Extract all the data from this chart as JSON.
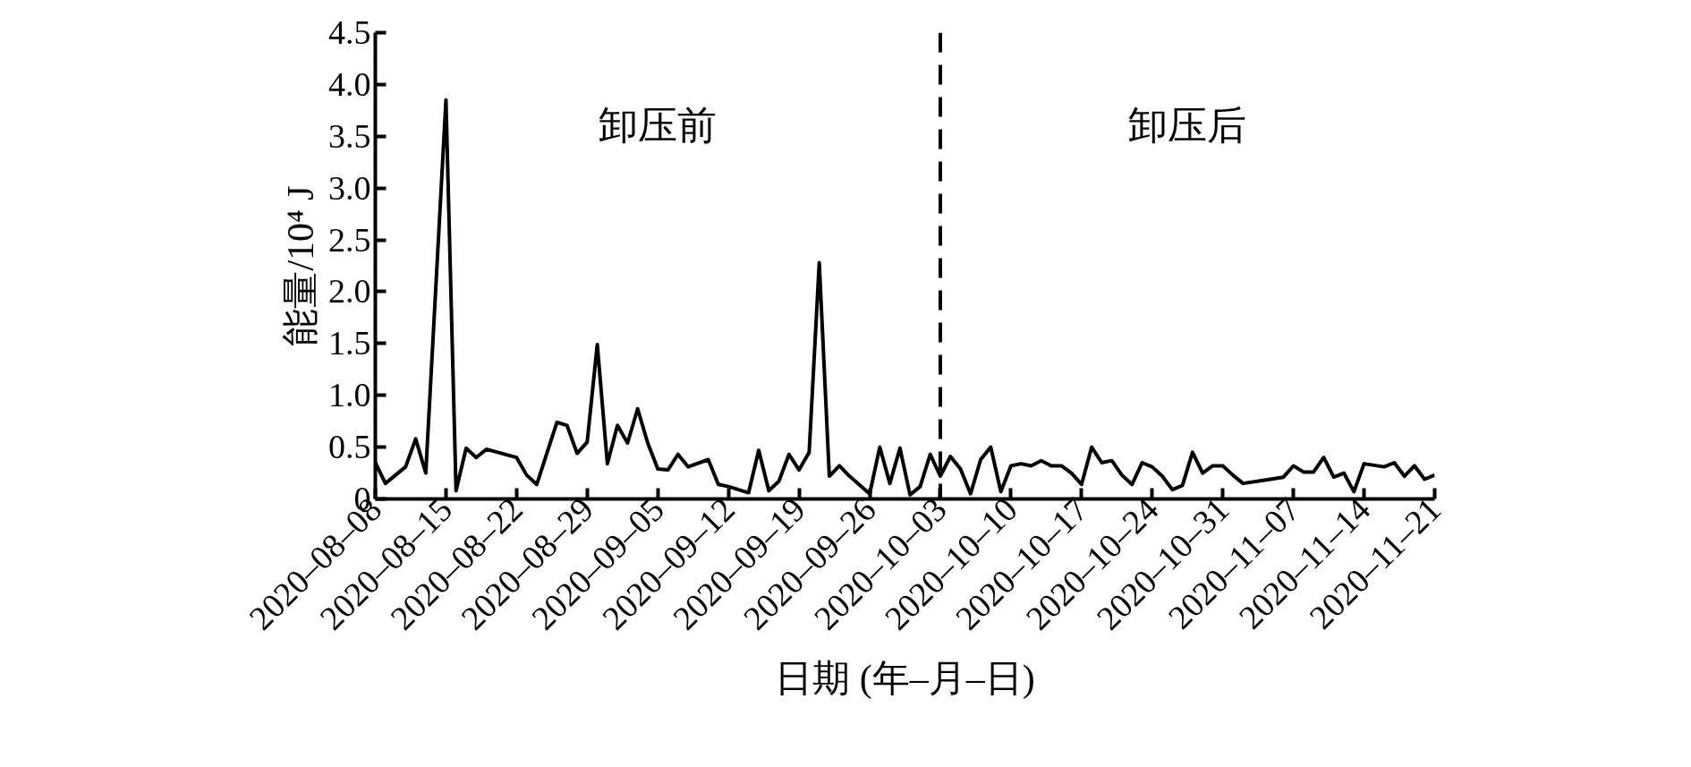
{
  "chart_data": {
    "type": "line",
    "xlabel": "日期 (年–月–日)",
    "ylabel": "能量/10⁴ J",
    "x": [
      "2020-08-08",
      "2020-08-09",
      "2020-08-11",
      "2020-08-12",
      "2020-08-13",
      "2020-08-15",
      "2020-08-16",
      "2020-08-17",
      "2020-08-18",
      "2020-08-19",
      "2020-08-22",
      "2020-08-23",
      "2020-08-24",
      "2020-08-26",
      "2020-08-27",
      "2020-08-28",
      "2020-08-29",
      "2020-08-30",
      "2020-08-31",
      "2020-09-01",
      "2020-09-02",
      "2020-09-03",
      "2020-09-04",
      "2020-09-05",
      "2020-09-06",
      "2020-09-07",
      "2020-09-08",
      "2020-09-10",
      "2020-09-11",
      "2020-09-12",
      "2020-09-14",
      "2020-09-15",
      "2020-09-16",
      "2020-09-17",
      "2020-09-18",
      "2020-09-19",
      "2020-09-20",
      "2020-09-21",
      "2020-09-22",
      "2020-09-23",
      "2020-09-24",
      "2020-09-26",
      "2020-09-27",
      "2020-09-28",
      "2020-09-29",
      "2020-09-30",
      "2020-10-01",
      "2020-10-02",
      "2020-10-03",
      "2020-10-04",
      "2020-10-05",
      "2020-10-06",
      "2020-10-07",
      "2020-10-08",
      "2020-10-09",
      "2020-10-10",
      "2020-10-11",
      "2020-10-12",
      "2020-10-13",
      "2020-10-14",
      "2020-10-15",
      "2020-10-16",
      "2020-10-17",
      "2020-10-18",
      "2020-10-19",
      "2020-10-20",
      "2020-10-21",
      "2020-10-22",
      "2020-10-23",
      "2020-10-24",
      "2020-10-25",
      "2020-10-26",
      "2020-10-27",
      "2020-10-28",
      "2020-10-29",
      "2020-10-30",
      "2020-10-31",
      "2020-11-01",
      "2020-11-02",
      "2020-11-04",
      "2020-11-06",
      "2020-11-07",
      "2020-11-08",
      "2020-11-09",
      "2020-11-10",
      "2020-11-11",
      "2020-11-12",
      "2020-11-13",
      "2020-11-14",
      "2020-11-16",
      "2020-11-17",
      "2020-11-18",
      "2020-11-19",
      "2020-11-20",
      "2020-11-21"
    ],
    "series": [
      {
        "color": "#000000",
        "values": [
          0.35,
          0.15,
          0.31,
          0.58,
          0.25,
          3.85,
          0.08,
          0.49,
          0.4,
          0.48,
          0.4,
          0.23,
          0.14,
          0.74,
          0.71,
          0.44,
          0.55,
          1.49,
          0.34,
          0.71,
          0.54,
          0.87,
          0.54,
          0.29,
          0.28,
          0.43,
          0.31,
          0.38,
          0.14,
          0.12,
          0.06,
          0.47,
          0.08,
          0.17,
          0.43,
          0.28,
          0.45,
          2.28,
          0.22,
          0.32,
          0.22,
          0.05,
          0.5,
          0.15,
          0.49,
          0.04,
          0.12,
          0.43,
          0.22,
          0.41,
          0.29,
          0.05,
          0.38,
          0.5,
          0.07,
          0.32,
          0.34,
          0.32,
          0.37,
          0.32,
          0.32,
          0.25,
          0.14,
          0.5,
          0.35,
          0.37,
          0.23,
          0.14,
          0.35,
          0.31,
          0.22,
          0.09,
          0.13,
          0.45,
          0.25,
          0.32,
          0.32,
          0.23,
          0.15,
          0.18,
          0.21,
          0.32,
          0.26,
          0.26,
          0.4,
          0.21,
          0.25,
          0.07,
          0.34,
          0.31,
          0.35,
          0.22,
          0.32,
          0.19,
          0.23
        ]
      }
    ],
    "xlim": [
      "2020-08-08",
      "2020-11-21"
    ],
    "xticks": [
      {
        "value": "2020-08-08",
        "label": "2020–08–08"
      },
      {
        "value": "2020-08-15",
        "label": "2020–08–15"
      },
      {
        "value": "2020-08-22",
        "label": "2020–08–22"
      },
      {
        "value": "2020-08-29",
        "label": "2020–08–29"
      },
      {
        "value": "2020-09-05",
        "label": "2020–09–05"
      },
      {
        "value": "2020-09-12",
        "label": "2020–09–12"
      },
      {
        "value": "2020-09-19",
        "label": "2020–09–19"
      },
      {
        "value": "2020-09-26",
        "label": "2020–09–26"
      },
      {
        "value": "2020-10-03",
        "label": "2020–10–03"
      },
      {
        "value": "2020-10-10",
        "label": "2020–10–10"
      },
      {
        "value": "2020-10-17",
        "label": "2020–10–17"
      },
      {
        "value": "2020-10-24",
        "label": "2020–10–24"
      },
      {
        "value": "2020-10-31",
        "label": "2020–10–31"
      },
      {
        "value": "2020-11-07",
        "label": "2020–11–07"
      },
      {
        "value": "2020-11-14",
        "label": "2020–11–14"
      },
      {
        "value": "2020-11-21",
        "label": "2020–11–21"
      }
    ],
    "ylim": [
      0,
      4.5
    ],
    "yticks": [
      0,
      0.5,
      {
        "value": 1,
        "label": "1.0"
      },
      1.5,
      {
        "value": 2,
        "label": "2.0"
      },
      2.5,
      {
        "value": 3,
        "label": "3.0"
      },
      3.5,
      {
        "value": 4,
        "label": "4.0"
      },
      4.5
    ],
    "ref_lines": [
      {
        "axis": "x",
        "value": "2020-10-03",
        "label": null,
        "color": "#000000",
        "line_style": "dashed"
      }
    ],
    "annotations": [
      "卸压前",
      "卸压后"
    ],
    "grid": false,
    "marker": "none",
    "line_style": "solid"
  }
}
